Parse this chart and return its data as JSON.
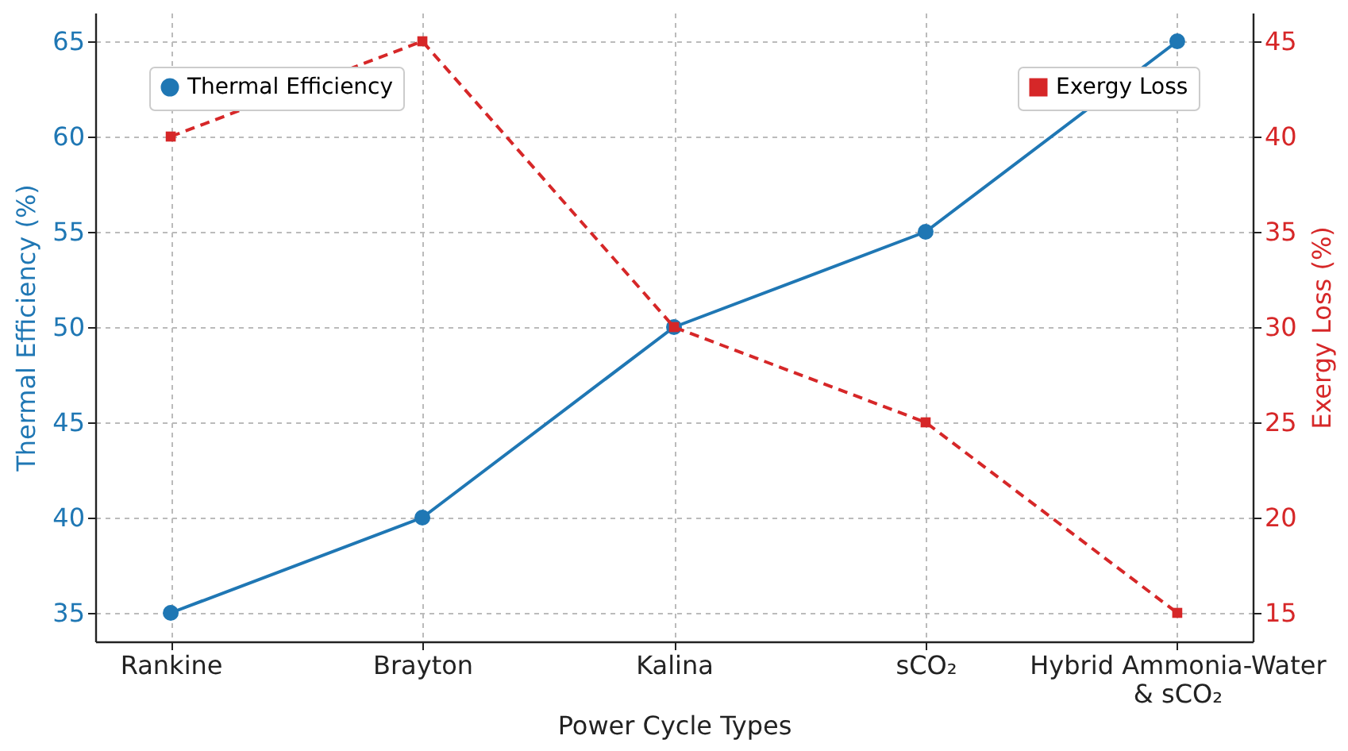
{
  "chart_data": {
    "type": "line",
    "xlabel": "Power Cycle Types",
    "ylabel": "Thermal Efficiency (%)",
    "y2label": "Exergy Loss (%)",
    "categories": [
      "Rankine",
      "Brayton",
      "Kalina",
      "sCO₂",
      "Hybrid Ammonia-Water & sCO₂"
    ],
    "series": [
      {
        "name": "Thermal Efficiency",
        "color": "#1f77b4",
        "values": [
          35,
          40,
          50,
          55,
          65
        ],
        "marker": "circle",
        "line_style": "solid"
      },
      {
        "name": "Exergy Loss",
        "color": "#d62728",
        "values": [
          40,
          45,
          30,
          25,
          15
        ],
        "axis": "y2",
        "marker": "square",
        "line_style": "dashed"
      }
    ],
    "ylim": [
      33.5,
      66.5
    ],
    "yticks": [
      35,
      40,
      45,
      50,
      55,
      60,
      65
    ],
    "y2lim": [
      13.5,
      46.5
    ],
    "y2ticks": [
      15,
      20,
      25,
      30,
      35,
      40,
      45
    ],
    "grid": true,
    "legend": "top"
  }
}
